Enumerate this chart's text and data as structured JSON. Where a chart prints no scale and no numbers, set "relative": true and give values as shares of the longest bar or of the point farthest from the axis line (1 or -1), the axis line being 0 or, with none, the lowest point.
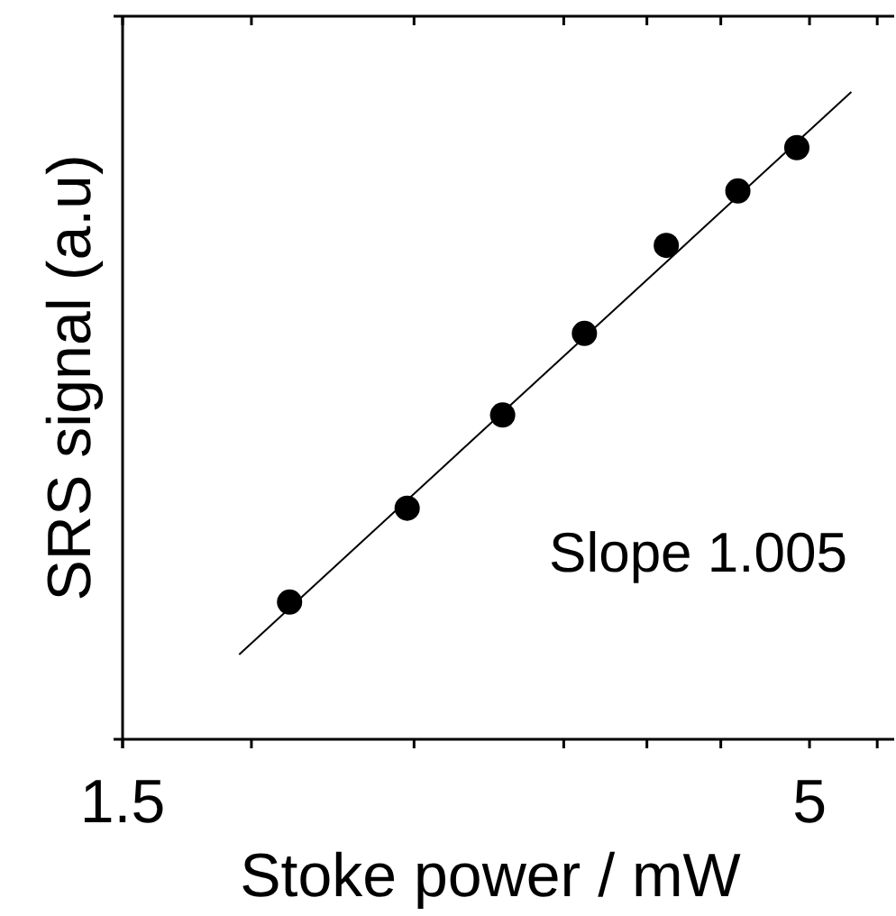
{
  "chart_data": {
    "type": "scatter",
    "relative": true,
    "log": "x",
    "xlabel": "Stoke power / mW",
    "ylabel": "SRS signal (a.u)",
    "xlim": [
      1.5,
      5.8
    ],
    "xticks": [
      1.5,
      {
        "value": 1.88,
        "label": null
      },
      {
        "value": 2.5,
        "label": null
      },
      {
        "value": 3.25,
        "label": null
      },
      {
        "value": 3.76,
        "label": null
      },
      {
        "value": 4.28,
        "label": null
      },
      5,
      {
        "value": 5.63,
        "label": null
      }
    ],
    "grid": false,
    "annotations": [
      "Slope 1.005"
    ],
    "series": [
      {
        "color": "#000000",
        "marker": "circle",
        "x": [
          2.01,
          2.47,
          2.92,
          3.37,
          3.89,
          4.41,
          4.89
        ],
        "values": [
          0.212,
          0.357,
          0.501,
          0.627,
          0.763,
          0.847,
          0.914
        ]
      },
      {
        "type": "line",
        "color": "#000000",
        "line_style": "solid",
        "marker": "none",
        "x": [
          1.84,
          5.38
        ],
        "values": [
          0.131,
          1
        ]
      }
    ]
  }
}
